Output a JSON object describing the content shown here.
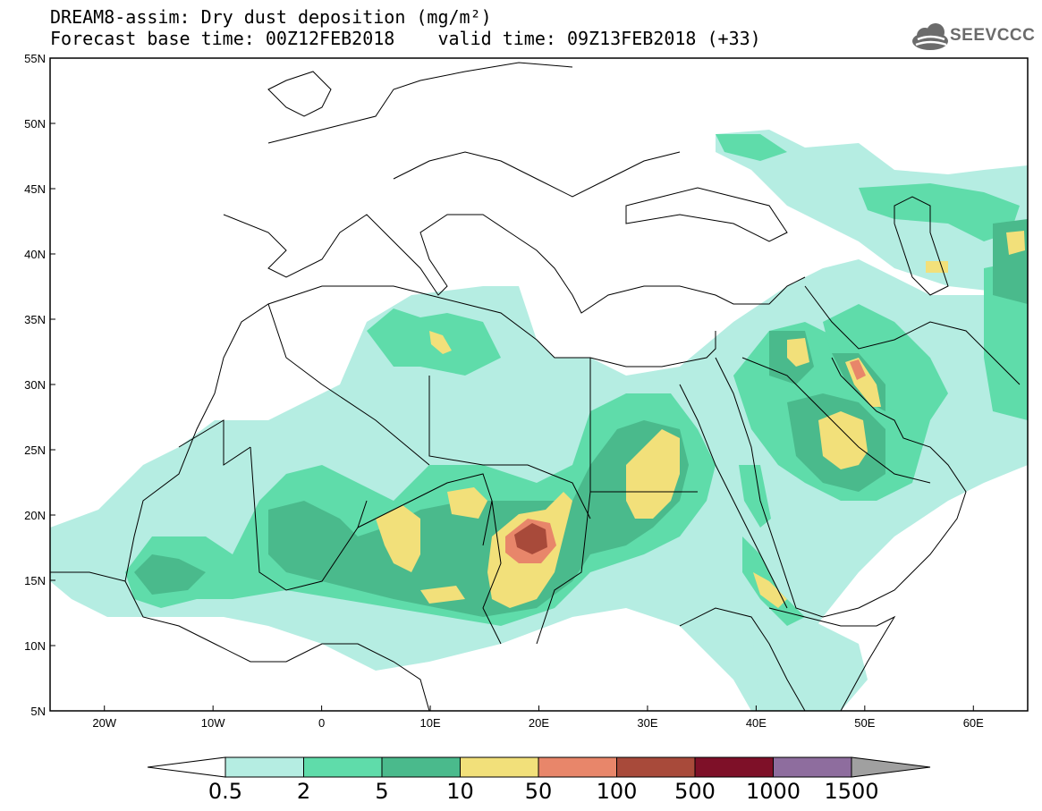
{
  "title": {
    "line1": "DREAM8-assim: Dry dust deposition (mg/m²)",
    "line2": "Forecast base time: 00Z12FEB2018    valid time: 09Z13FEB2018 (+33)"
  },
  "logo": {
    "text": "SEEVCCC",
    "icon": "cloud-icon"
  },
  "map": {
    "lat_range": [
      5,
      55
    ],
    "lon_range": [
      -25,
      65
    ],
    "lat_ticks": [
      "5N",
      "10N",
      "15N",
      "20N",
      "25N",
      "30N",
      "35N",
      "40N",
      "45N",
      "50N",
      "55N"
    ],
    "lon_ticks": [
      "20W",
      "10W",
      "0",
      "10E",
      "20E",
      "30E",
      "40E",
      "50E",
      "60E"
    ],
    "colors": {
      "c1": "#b5ede2",
      "c2": "#5fdcaa",
      "c3": "#4aba8c",
      "c4": "#f2e07a",
      "c5": "#e8866a",
      "c6": "#a84a3a",
      "c7": "#7e1028",
      "c8": "#8e6d9e",
      "c9": "#a0a0a0"
    }
  },
  "legend": {
    "labels": [
      "0.5",
      "2",
      "5",
      "10",
      "50",
      "100",
      "500",
      "1000",
      "1500"
    ]
  }
}
